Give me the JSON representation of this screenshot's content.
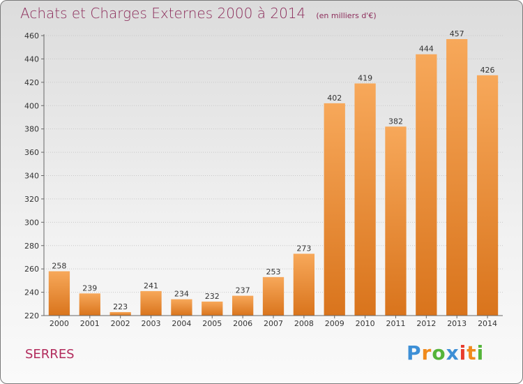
{
  "title": "Achats et Charges Externes 2000 à 2014",
  "subtitle": "(en milliers d'€)",
  "location": "SERRES",
  "brand": {
    "text": "Proxiti",
    "letter_colors": [
      "#3d8fd6",
      "#f08a1c",
      "#55b43a",
      "#3d8fd6",
      "#e83c2c",
      "#f08a1c",
      "#55b43a"
    ]
  },
  "colors": {
    "title": "#8c2d5b",
    "bar_light": "#f7a85a",
    "bar_dark": "#d9741c",
    "gridline": "#c8c8c8"
  },
  "chart_data": {
    "type": "bar",
    "title": "Achats et Charges Externes 2000 à 2014",
    "subtitle": "(en milliers d'€)",
    "categories": [
      "2000",
      "2001",
      "2002",
      "2003",
      "2004",
      "2005",
      "2006",
      "2007",
      "2008",
      "2009",
      "2010",
      "2011",
      "2012",
      "2013",
      "2014"
    ],
    "values": [
      258,
      239,
      223,
      241,
      234,
      232,
      237,
      253,
      273,
      402,
      419,
      382,
      444,
      457,
      426
    ],
    "ylim": [
      220,
      460
    ],
    "yticks": [
      220,
      240,
      260,
      280,
      300,
      320,
      340,
      360,
      380,
      400,
      420,
      440,
      460
    ],
    "grid": true,
    "data_labels": true
  }
}
